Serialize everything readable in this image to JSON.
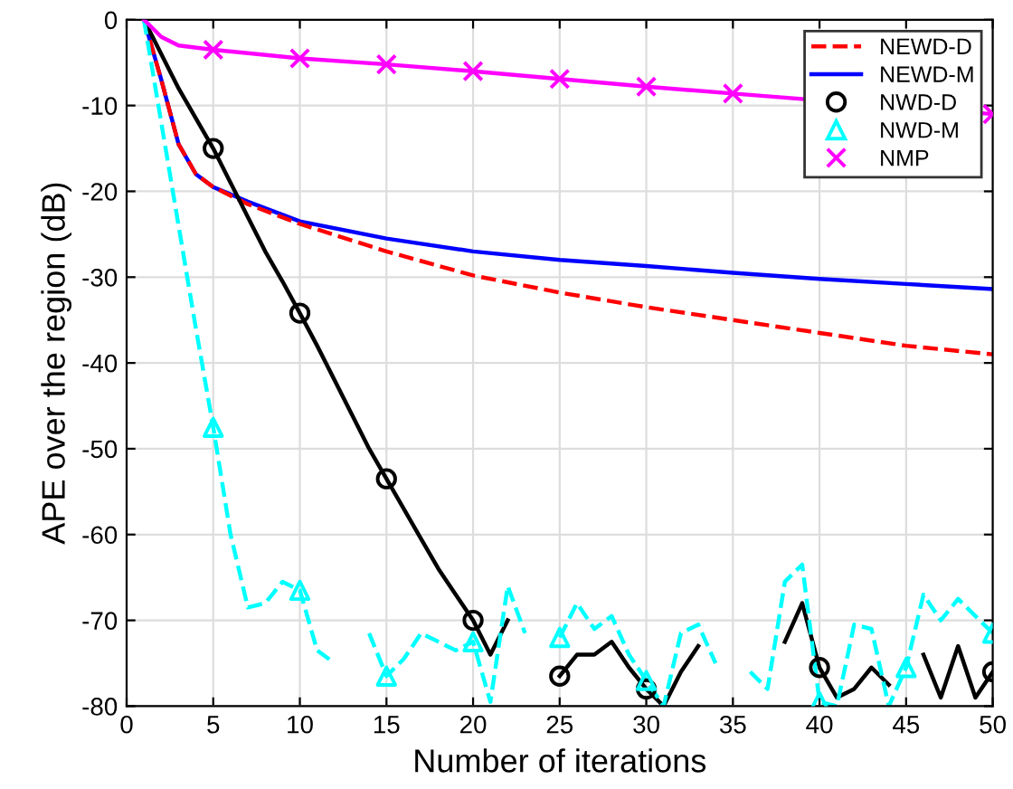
{
  "chart_data": {
    "type": "line",
    "xlabel": "Number of iterations",
    "ylabel": "APE over the region (dB)",
    "xlim": [
      0,
      50
    ],
    "ylim": [
      -80,
      0
    ],
    "xticks": [
      0,
      5,
      10,
      15,
      20,
      25,
      30,
      35,
      40,
      45,
      50
    ],
    "yticks": [
      -80,
      -70,
      -60,
      -50,
      -40,
      -30,
      -20,
      -10,
      0
    ],
    "grid": true,
    "legend": "top right",
    "series": [
      {
        "name": "NEWD-M",
        "color": "#0000ff",
        "line_style": "solid",
        "marker": "none",
        "x": [
          1,
          2,
          3,
          4,
          5,
          7,
          10,
          15,
          20,
          25,
          30,
          35,
          40,
          45,
          50
        ],
        "values": [
          0,
          -7,
          -14.5,
          -18,
          -19.5,
          -21.2,
          -23.5,
          -25.5,
          -27,
          -28,
          -28.7,
          -29.5,
          -30.2,
          -30.8,
          -31.4
        ]
      },
      {
        "name": "NEWD-D",
        "color": "#ff0000",
        "line_style": "dashed",
        "marker": "none",
        "x": [
          1,
          2,
          3,
          4,
          5,
          7,
          10,
          15,
          20,
          25,
          30,
          35,
          40,
          45,
          50
        ],
        "values": [
          0,
          -7,
          -14.5,
          -18,
          -19.5,
          -21.5,
          -23.8,
          -27,
          -29.8,
          -31.8,
          -33.5,
          -35,
          -36.5,
          -38,
          -39
        ]
      },
      {
        "color": "#000000",
        "line_style": "solid",
        "marker": "none",
        "x": [
          1,
          2,
          3,
          4,
          5,
          6,
          7,
          8,
          9,
          10,
          11,
          12,
          13,
          14,
          15,
          16,
          17,
          18,
          19,
          20,
          21,
          22,
          23,
          24,
          25,
          26,
          27,
          28,
          29,
          30,
          31,
          32,
          33,
          34,
          35,
          36,
          37,
          38,
          39,
          40,
          41,
          42,
          43,
          44,
          45,
          46,
          47,
          48,
          49,
          50
        ],
        "values": [
          0,
          -4,
          -8,
          -11.5,
          -15,
          -19,
          -23,
          -27,
          -30.5,
          -34.2,
          -38,
          -42,
          -46,
          -50,
          -53.5,
          -57,
          -60.5,
          -64,
          -67,
          -70,
          -74,
          -70,
          null,
          null,
          -76.5,
          -74,
          -74,
          -72.5,
          -75.5,
          -78,
          -80,
          -76,
          -73,
          null,
          null,
          null,
          null,
          -72.5,
          -68,
          -75.5,
          -79,
          -78,
          -75.5,
          -77.5,
          null,
          -74,
          -79,
          -73,
          -79,
          -76
        ]
      },
      {
        "type": "scatter",
        "name": "NWD-D",
        "color": "#000000",
        "marker": "circle",
        "x": [
          5,
          10,
          15,
          20,
          25,
          30,
          40,
          50
        ],
        "values": [
          -15,
          -34.2,
          -53.5,
          -70,
          -76.5,
          -78,
          -75.5,
          -76
        ]
      },
      {
        "color": "#00ffff",
        "line_style": "dashed",
        "marker": "none",
        "x": [
          1,
          2,
          3,
          4,
          5,
          6,
          7,
          8,
          9,
          10,
          11,
          12,
          13,
          14,
          15,
          16,
          17,
          18,
          19,
          20,
          21,
          22,
          23,
          24,
          25,
          26,
          27,
          28,
          29,
          30,
          31,
          32,
          33,
          34,
          35,
          36,
          37,
          38,
          39,
          40,
          41,
          42,
          43,
          44,
          45,
          46,
          47,
          48,
          49,
          50
        ],
        "values": [
          0,
          -12,
          -24,
          -36,
          -47.5,
          -60,
          -68.5,
          -68,
          -65.5,
          -66.5,
          -73.5,
          -75,
          null,
          -71.5,
          -76.5,
          -74.5,
          -71.5,
          -72.5,
          -73.5,
          -72.5,
          -79.5,
          -66,
          -71.5,
          null,
          -72,
          -68,
          -71,
          -69.5,
          -74,
          -77,
          -80,
          -71.5,
          -70.5,
          -75,
          null,
          -76,
          -78,
          -65.5,
          -63.5,
          -79.5,
          -80,
          -70.5,
          -71,
          -80,
          -75.5,
          -67,
          -70,
          -67.5,
          -69.5,
          -71.5
        ]
      },
      {
        "type": "scatter",
        "name": "NWD-M",
        "color": "#00ffff",
        "marker": "triangle",
        "x": [
          5,
          10,
          15,
          20,
          25,
          30,
          40,
          45,
          50
        ],
        "values": [
          -47.5,
          -66.5,
          -76.5,
          -72.5,
          -72,
          -77,
          -79.5,
          -75.5,
          -71.5
        ]
      },
      {
        "color": "#ff00ff",
        "line_style": "solid",
        "marker": "none",
        "x": [
          1,
          2,
          3,
          5,
          10,
          15,
          20,
          25,
          30,
          35,
          50
        ],
        "values": [
          0,
          -2,
          -3,
          -3.5,
          -4.5,
          -5.2,
          -6,
          -6.9,
          -7.8,
          -8.6,
          -11
        ]
      },
      {
        "type": "scatter",
        "name": "NMP",
        "color": "#ff00ff",
        "marker": "cross",
        "x": [
          5,
          10,
          15,
          20,
          25,
          30,
          35,
          50
        ],
        "values": [
          -3.5,
          -4.5,
          -5.2,
          -6,
          -6.9,
          -7.8,
          -8.6,
          -11
        ]
      }
    ]
  }
}
